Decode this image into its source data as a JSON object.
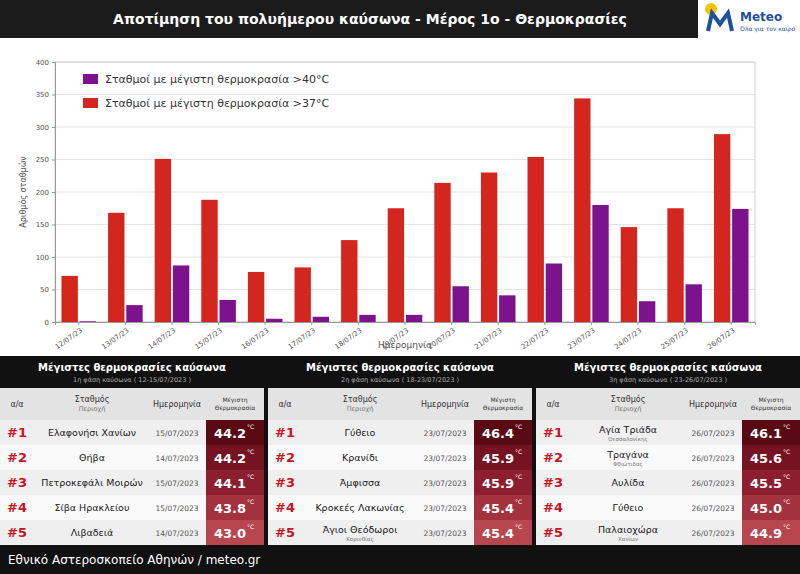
{
  "header": {
    "title": "Αποτίμηση του πολυήμερου καύσωνα - Μέρος 1ο - Θερμοκρασίες",
    "logo_text": "Meteo",
    "logo_tagline": "Όλα για τον καιρό"
  },
  "chart_data": {
    "type": "bar",
    "x_label": "Ημερομηνία",
    "y_label": "Αριθμός σταθμών",
    "categories": [
      "12/07/23",
      "13/07/23",
      "14/07/23",
      "15/07/23",
      "16/07/23",
      "17/07/23",
      "18/07/23",
      "19/07/23",
      "20/07/23",
      "21/07/23",
      "22/07/23",
      "23/07/23",
      "24/07/23",
      "25/07/23",
      "26/07/23"
    ],
    "series": [
      {
        "name": "Σταθμοί με μέγιστη θερμοκρασία >40°C",
        "color": "#7b138c",
        "values": [
          1,
          26,
          87,
          34,
          5,
          8,
          11,
          11,
          55,
          41,
          90,
          180,
          32,
          58,
          174
        ]
      },
      {
        "name": "Σταθμοί με μέγιστη θερμοκρασία >37°C",
        "color": "#d3261f",
        "values": [
          71,
          168,
          251,
          188,
          77,
          84,
          126,
          175,
          214,
          230,
          254,
          344,
          146,
          175,
          289
        ]
      }
    ],
    "ylim": [
      0,
      400
    ],
    "yticks": [
      0,
      50,
      100,
      150,
      200,
      250,
      300,
      350,
      400
    ],
    "grid": true,
    "legend": "top-left",
    "data_labels": false
  },
  "tables": [
    {
      "title": "Μέγιστες θερμοκρασίες καύσωνα",
      "subtitle": "1η φάση καύσωνα ( 12-15/07/2023 )",
      "columns": [
        "α/α",
        "Σταθμός",
        "Ημερομηνία",
        "Μέγιστη Θερμοκρασία"
      ],
      "column_sub": "Περιοχή",
      "unit": "°C",
      "rows": [
        {
          "rank": "#1",
          "station": "Ελαφονήσι Χανίων",
          "date": "15/07/2023",
          "temp": "44.2"
        },
        {
          "rank": "#2",
          "station": "Θήβα",
          "date": "14/07/2023",
          "temp": "44.2"
        },
        {
          "rank": "#3",
          "station": "Πετροκεφάλι Μοιρών",
          "date": "15/07/2023",
          "temp": "44.1"
        },
        {
          "rank": "#4",
          "station": "Σίβα Ηρακλείου",
          "date": "15/07/2023",
          "temp": "43.8"
        },
        {
          "rank": "#5",
          "station": "Λιβαδειά",
          "date": "14/07/2023",
          "temp": "43.0"
        }
      ]
    },
    {
      "title": "Μέγιστες θερμοκρασίες καύσωνα",
      "subtitle": "2η φάση καύσωνα ( 18-23/07/2023 )",
      "columns": [
        "α/α",
        "Σταθμός",
        "Ημερομηνία",
        "Μέγιστη Θερμοκρασία"
      ],
      "column_sub": "Περιοχή",
      "unit": "°C",
      "rows": [
        {
          "rank": "#1",
          "station": "Γύθειο",
          "date": "23/07/2023",
          "temp": "46.4"
        },
        {
          "rank": "#2",
          "station": "Κρανίδι",
          "date": "23/07/2023",
          "temp": "45.9"
        },
        {
          "rank": "#3",
          "station": "Άμφισσα",
          "date": "23/07/2023",
          "temp": "45.9"
        },
        {
          "rank": "#4",
          "station": "Κροκεές Λακωνίας",
          "date": "23/07/2023",
          "temp": "45.4"
        },
        {
          "rank": "#5",
          "station": "Άγιοι Θεόδωροι",
          "region": "Κορινθίας",
          "date": "23/07/2023",
          "temp": "45.4"
        }
      ]
    },
    {
      "title": "Μέγιστες θερμοκρασίες καύσωνα",
      "subtitle": "3η φάση καύσωνα ( 23-26/07/2023 )",
      "columns": [
        "α/α",
        "Σταθμός",
        "Ημερομηνία",
        "Μέγιστη Θερμοκρασία"
      ],
      "column_sub": "Περιοχή",
      "unit": "°C",
      "rows": [
        {
          "rank": "#1",
          "station": "Αγία Τριάδα",
          "region": "Θεσσαλονίκης",
          "date": "26/07/2023",
          "temp": "46.1"
        },
        {
          "rank": "#2",
          "station": "Τραγάνα",
          "region": "Φθιώτιδας",
          "date": "26/07/2023",
          "temp": "45.6"
        },
        {
          "rank": "#3",
          "station": "Αυλίδα",
          "date": "26/07/2023",
          "temp": "45.5"
        },
        {
          "rank": "#4",
          "station": "Γύθειο",
          "date": "26/07/2023",
          "temp": "45.0"
        },
        {
          "rank": "#5",
          "station": "Παλαιοχώρα",
          "region": "Χανίων",
          "date": "26/07/2023",
          "temp": "44.9"
        }
      ]
    }
  ],
  "footer": "Εθνικό Αστεροσκοπείο Αθηνών / meteo.gr"
}
